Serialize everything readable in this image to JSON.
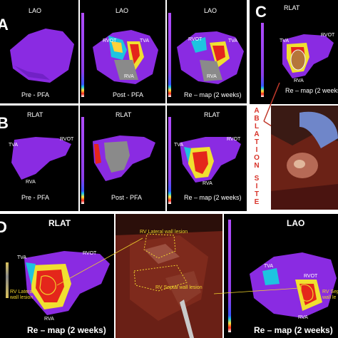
{
  "panels": {
    "a": {
      "letter": "A",
      "view": "LAO",
      "maps": [
        {
          "view": "LAO",
          "caption": "Pre - PFA"
        },
        {
          "view": "LAO",
          "caption": "Post - PFA"
        },
        {
          "view": "LAO",
          "caption": "Re – map (2 weeks)"
        }
      ],
      "labels": {
        "rvot": "RVOT",
        "tva": "TVA",
        "rva": "RVA",
        "rvot2": "RVOT",
        "tva2": "TVA",
        "rva2": "RVA",
        "rvot3": "RVOT",
        "tva3": "TVA",
        "rva3": "RVA"
      }
    },
    "b": {
      "letter": "B",
      "maps": [
        {
          "view": "RLAT",
          "caption": "Pre - PFA"
        },
        {
          "view": "RLAT",
          "caption": "Post - PFA"
        },
        {
          "view": "RLAT",
          "caption": "Re – map (2 weeks)"
        }
      ],
      "labels": {
        "tva": "TVA",
        "rvot": "RVOT",
        "rva": "RVA",
        "tva3": "TVA",
        "rvot3": "RVOT",
        "rva3": "RVA"
      }
    },
    "c": {
      "letter": "C",
      "view": "RLAT",
      "caption": "Re – map (2 weeks)",
      "labels": {
        "tva": "TVA",
        "rvot": "RVOT",
        "rva": "RVA"
      },
      "side_text": [
        "A",
        "B",
        "L",
        "A",
        "T",
        "I",
        "O",
        "N",
        "",
        "S",
        "I",
        "T",
        "E"
      ]
    },
    "d": {
      "letter": "D",
      "left": {
        "view": "RLAT",
        "caption": "Re – map (2 weeks)",
        "tva": "TVA",
        "rvot": "RVOT",
        "rva": "RVA",
        "lesion": [
          "RV Lateral",
          "wall lesion"
        ]
      },
      "photo": {
        "lateral": "RV Lateral wall lesion",
        "septal": "RV Septal wall lesion"
      },
      "right": {
        "view": "LAO",
        "caption": "Re – map (2 weeks)",
        "tva": "TVA",
        "rvot": "RVOT",
        "rva": "RVA",
        "lesion": [
          "RV Sep",
          "wall le"
        ]
      }
    }
  }
}
